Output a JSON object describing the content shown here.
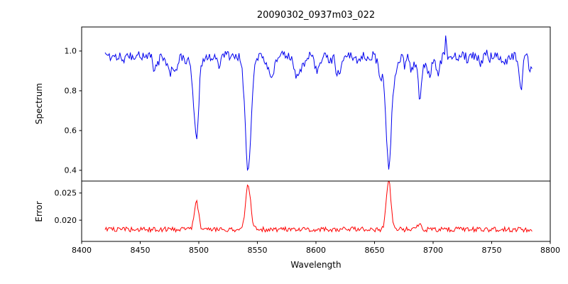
{
  "chart_data": {
    "type": "line",
    "title": "20090302_0937m03_022",
    "xlabel": "Wavelength",
    "grid": false,
    "legend": "none",
    "x_range": [
      8400,
      8800
    ],
    "x_ticks": [
      8400,
      8450,
      8500,
      8550,
      8600,
      8650,
      8700,
      8750,
      8800
    ],
    "data_x_range": [
      8420,
      8785
    ],
    "sample_step": 0.9,
    "seed": 1337,
    "panels": [
      {
        "name": "spectrum",
        "ylabel": "Spectrum",
        "ylim": [
          0.346,
          1.121
        ],
        "y_ticks": [
          0.4,
          0.6,
          0.8,
          1.0
        ],
        "y_tick_labels": [
          "0.4",
          "0.6",
          "0.8",
          "1.0"
        ],
        "color": "#0000ee",
        "continuum": 0.975,
        "noise": 0.024,
        "absorption_lines": [
          {
            "center": 8498.0,
            "depth": 0.41,
            "width": 2.0
          },
          {
            "center": 8542.1,
            "depth": 0.58,
            "width": 2.5
          },
          {
            "center": 8662.1,
            "depth": 0.55,
            "width": 2.4
          },
          {
            "center": 8688.6,
            "depth": 0.2,
            "width": 1.5
          }
        ],
        "emission_spikes": [
          {
            "center": 8711.0,
            "height": 0.11,
            "width": 0.6
          },
          {
            "center": 8746.0,
            "height": 0.06,
            "width": 0.6
          }
        ],
        "minor_line_count": 45,
        "minor_line_depth_range": [
          0.01,
          0.08
        ],
        "minor_line_width_range": [
          0.8,
          2.2
        ]
      },
      {
        "name": "error",
        "ylabel": "Error",
        "ylim": [
          0.0161,
          0.0272
        ],
        "y_ticks": [
          0.02,
          0.025
        ],
        "y_tick_labels": [
          "0.020",
          "0.025"
        ],
        "color": "#ff0000",
        "baseline": 0.0183,
        "noise": 0.00045,
        "peaks": [
          {
            "center": 8498.0,
            "height": 0.0052,
            "width": 1.8
          },
          {
            "center": 8542.1,
            "height": 0.0082,
            "width": 2.2
          },
          {
            "center": 8662.1,
            "height": 0.0088,
            "width": 2.0
          },
          {
            "center": 8688.6,
            "height": 0.0012,
            "width": 1.5
          }
        ]
      }
    ],
    "axis_color": "#000000",
    "background_color": "#ffffff"
  }
}
